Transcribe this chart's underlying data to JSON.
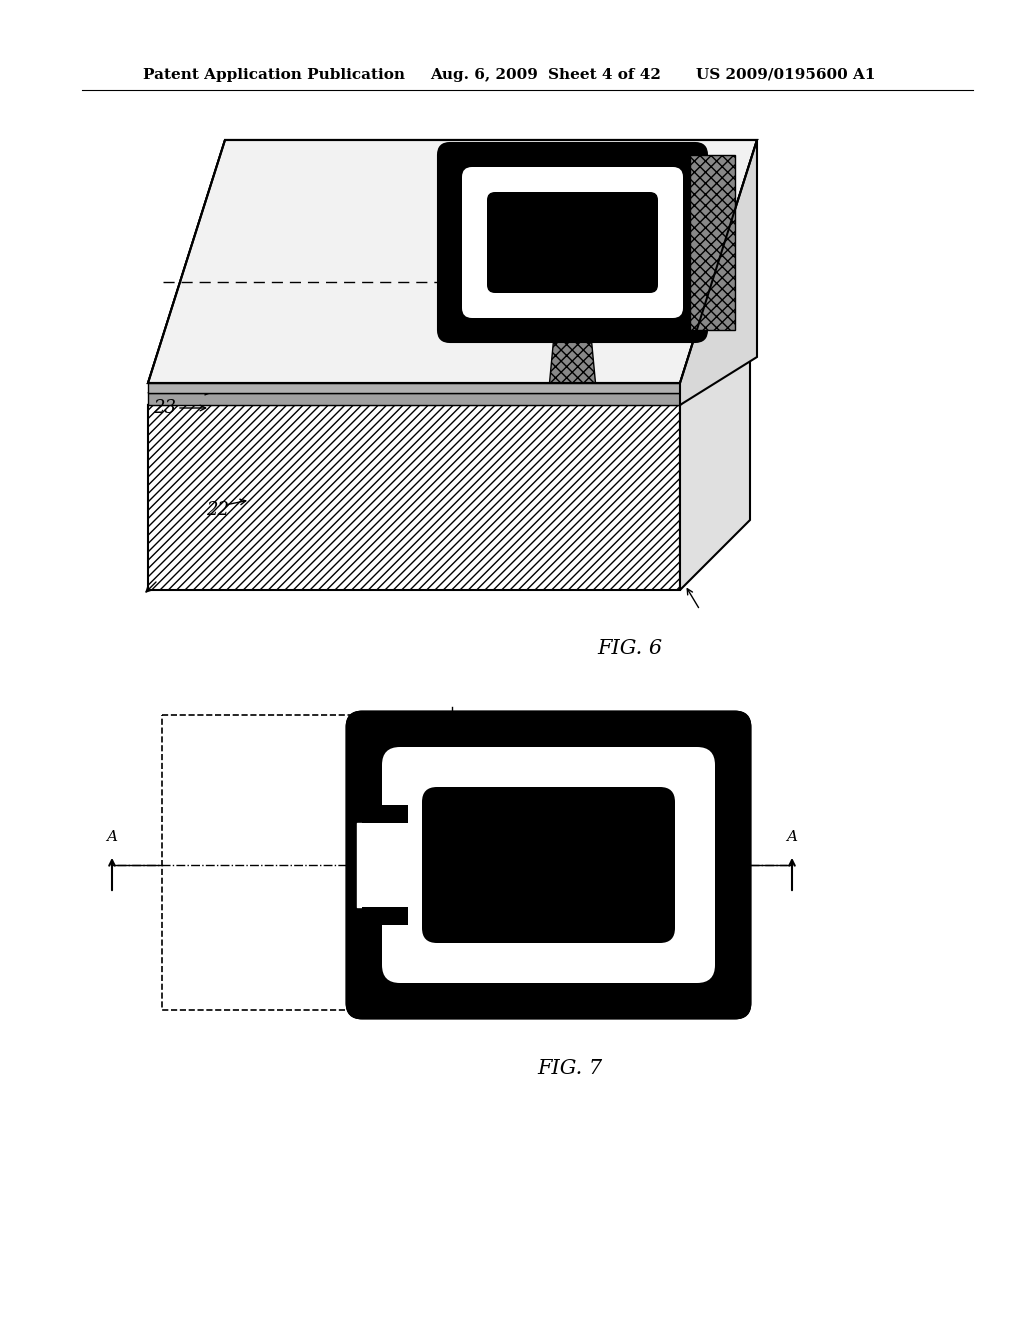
{
  "bg_color": "#ffffff",
  "header_text1": "Patent Application Publication",
  "header_text2": "Aug. 6, 2009",
  "header_text3": "Sheet 4 of 42",
  "header_text4": "US 2009/0195600 A1",
  "fig6_label": "FIG. 6",
  "fig7_label": "FIG. 7",
  "line_color": "#000000"
}
